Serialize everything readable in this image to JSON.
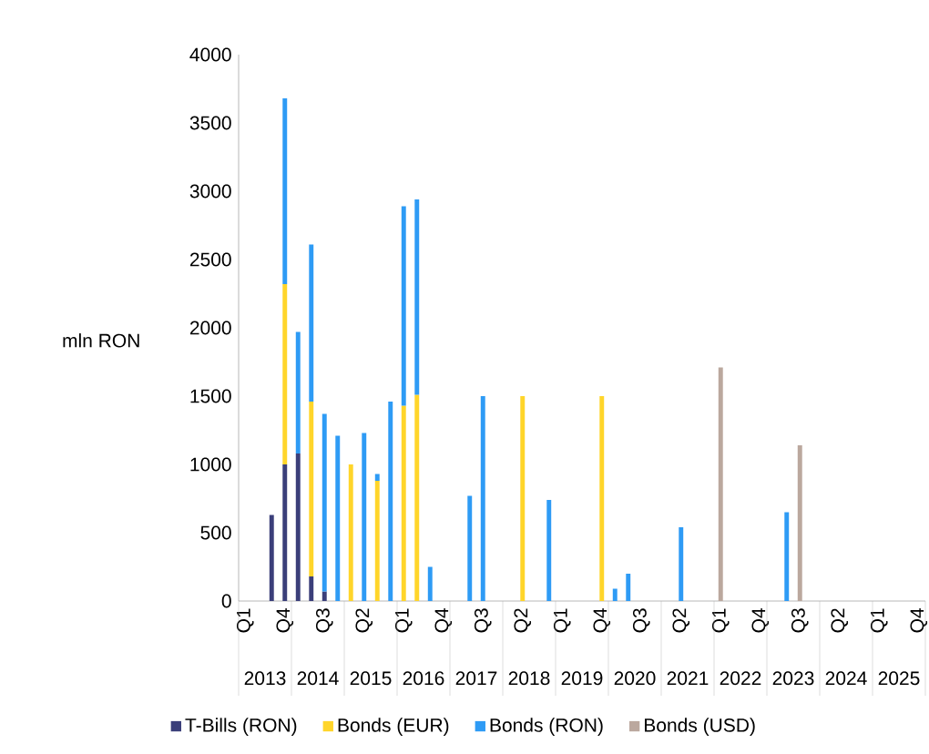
{
  "chart_data": {
    "type": "bar",
    "stacked": true,
    "ylabel": "mln RON",
    "ylim": [
      0,
      4000
    ],
    "yticks": [
      0,
      500,
      1000,
      1500,
      2000,
      2500,
      3000,
      3500,
      4000
    ],
    "legend": "bottom",
    "grid": false,
    "categories": [
      "Q1",
      null,
      null,
      "Q4",
      null,
      null,
      "Q3",
      null,
      null,
      "Q2",
      null,
      null,
      "Q1",
      null,
      null,
      "Q4",
      null,
      null,
      "Q3",
      null,
      null,
      "Q2",
      null,
      null,
      "Q1",
      null,
      null,
      "Q4",
      null,
      null,
      "Q3",
      null,
      null,
      "Q2",
      null,
      null,
      "Q1",
      null,
      null,
      "Q4",
      null,
      null,
      "Q3",
      null,
      null,
      "Q2",
      null,
      null,
      "Q1",
      null,
      null,
      "Q4"
    ],
    "annotations": [
      "2013",
      "2014",
      "2015",
      "2016",
      "2017",
      "2018",
      "2019",
      "2020",
      "2021",
      "2022",
      "2023",
      "2024",
      "2025"
    ],
    "series": [
      {
        "name": "T-Bills (RON)",
        "color": "#3b3f7a",
        "values": [
          null,
          null,
          630,
          1000,
          1080,
          180,
          70,
          null,
          null,
          null,
          null,
          null,
          null,
          null,
          null,
          null,
          null,
          null,
          null,
          null,
          null,
          null,
          null,
          null,
          null,
          null,
          null,
          null,
          null,
          null,
          null,
          null,
          null,
          null,
          null,
          null,
          null,
          null,
          null,
          null,
          null,
          null,
          null,
          null,
          null,
          null,
          null,
          null,
          null,
          null,
          null,
          null
        ]
      },
      {
        "name": "Bonds (EUR)",
        "color": "#ffd52a",
        "values": [
          null,
          null,
          null,
          1320,
          null,
          1280,
          null,
          null,
          1000,
          null,
          880,
          null,
          1430,
          1510,
          null,
          null,
          null,
          null,
          null,
          null,
          null,
          1500,
          null,
          null,
          null,
          null,
          null,
          1500,
          null,
          null,
          null,
          null,
          null,
          null,
          null,
          null,
          null,
          null,
          null,
          null,
          null,
          null,
          null,
          null,
          null,
          null,
          null,
          null,
          null,
          null,
          null,
          null
        ]
      },
      {
        "name": "Bonds (RON)",
        "color": "#2e9bf5",
        "values": [
          null,
          null,
          null,
          1360,
          890,
          1150,
          1300,
          1210,
          null,
          1230,
          50,
          1460,
          1460,
          1430,
          250,
          null,
          null,
          770,
          1500,
          null,
          null,
          null,
          null,
          740,
          null,
          null,
          null,
          null,
          90,
          200,
          null,
          null,
          null,
          540,
          null,
          null,
          null,
          null,
          null,
          null,
          null,
          650,
          null,
          null,
          null,
          null,
          null,
          null,
          null,
          null,
          null,
          null
        ]
      },
      {
        "name": "Bonds (USD)",
        "color": "#bba89e",
        "values": [
          null,
          null,
          null,
          null,
          null,
          null,
          null,
          null,
          null,
          null,
          null,
          null,
          null,
          null,
          null,
          null,
          null,
          null,
          null,
          null,
          null,
          null,
          null,
          null,
          null,
          null,
          null,
          null,
          null,
          null,
          null,
          null,
          null,
          null,
          null,
          null,
          1710,
          null,
          null,
          null,
          null,
          null,
          1140,
          null,
          null,
          null,
          null,
          null,
          null,
          null,
          null,
          null
        ]
      }
    ]
  }
}
